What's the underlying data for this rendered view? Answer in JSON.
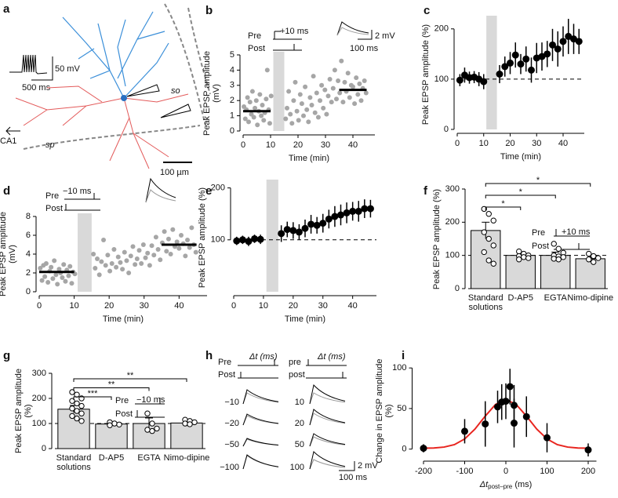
{
  "figure": {
    "a": {
      "panel": "a",
      "vscale": "50 mV",
      "hscale": "500 ms",
      "so": "so",
      "sp": "sp",
      "ca1": "CA1",
      "scale": "100 µm"
    },
    "h": {
      "panel": "h",
      "pre_left": "Pre",
      "post_left": "Post",
      "dt_left": "Δt (ms)",
      "left_rows": [
        "−10",
        "−20",
        "−50",
        "−100"
      ],
      "pre_right": "pre",
      "post_right": "post",
      "dt_right": "Δt (ms)",
      "right_rows": [
        "10",
        "20",
        "50",
        "100"
      ],
      "scale_mv": "2 mV",
      "scale_ms": "100 ms"
    }
  },
  "chart_data": [
    {
      "panel": "b",
      "type": "scatter",
      "xlabel": "Time (min)",
      "ylabel": "Peak EPSP amplitude (mV)",
      "xlim": [
        0,
        48
      ],
      "ylim": [
        0,
        5
      ],
      "xticks": [
        0,
        10,
        20,
        30,
        40
      ],
      "yticks": [
        0,
        1,
        2,
        3,
        4,
        5
      ],
      "shade": [
        11,
        15
      ],
      "color": "#a6a6a6",
      "x": [
        0.3,
        0.8,
        1.2,
        1.6,
        2.0,
        2.5,
        3.0,
        3.4,
        3.9,
        4.3,
        4.8,
        5.2,
        5.7,
        6.1,
        6.6,
        7.0,
        7.5,
        7.9,
        8.4,
        8.8,
        9.3,
        9.7,
        10.2,
        15.5,
        16,
        16.6,
        17.2,
        17.8,
        18.4,
        19,
        19.6,
        20.2,
        20.8,
        21.4,
        22,
        22.6,
        23.2,
        23.8,
        24.4,
        25,
        25.6,
        26.2,
        26.8,
        27.4,
        28,
        28.6,
        29.2,
        29.8,
        30.4,
        31,
        31.6,
        32.2,
        32.8,
        33.4,
        34,
        34.6,
        35.2,
        35.8,
        36.4,
        37,
        37.6,
        38.2,
        38.8,
        39.4,
        40,
        40.6,
        41.2,
        41.8,
        42.4,
        43,
        43.6,
        44.2,
        44.8
      ],
      "values": [
        1.6,
        0.8,
        1.4,
        2.2,
        0.6,
        1.9,
        1.1,
        2.6,
        0.9,
        1.5,
        2.0,
        0.4,
        1.3,
        2.4,
        1.0,
        1.7,
        0.7,
        1.2,
        2.1,
        4.0,
        1.4,
        0.5,
        2.3,
        0.8,
        1.5,
        2.6,
        1.1,
        0.5,
        2.0,
        3.2,
        1.3,
        0.7,
        2.4,
        1.8,
        1.0,
        2.9,
        1.4,
        0.6,
        2.2,
        1.7,
        3.6,
        1.2,
        2.5,
        0.9,
        2.0,
        3.0,
        1.5,
        2.7,
        1.1,
        2.3,
        3.4,
        1.9,
        2.8,
        4.0,
        2.1,
        3.3,
        2.5,
        4.6,
        1.9,
        3.2,
        2.6,
        3.8,
        2.2,
        3.0,
        2.9,
        1.8,
        3.5,
        2.4,
        3.1,
        2.0,
        2.8,
        3.3,
        2.5
      ],
      "means": [
        {
          "x": [
            0,
            10
          ],
          "value": 1.3
        },
        {
          "x": [
            35,
            45
          ],
          "value": 2.7
        }
      ],
      "annotations": [
        "Pre",
        "Post",
        "+10 ms",
        "2 mV",
        "100 ms"
      ]
    },
    {
      "panel": "c",
      "type": "errorbar",
      "xlabel": "Time (min)",
      "ylabel": "Peak EPSP amplitude (%)",
      "xlim": [
        0,
        48
      ],
      "ylim": [
        0,
        220
      ],
      "xticks": [
        0,
        10,
        20,
        30,
        40
      ],
      "yticks": [
        0,
        100,
        200
      ],
      "shade": [
        11,
        15
      ],
      "reference": 100,
      "color": "#000000",
      "x": [
        1,
        2.8,
        4.6,
        6.4,
        8.2,
        10,
        16,
        18,
        20,
        22,
        24,
        26,
        28,
        30,
        32,
        34,
        36,
        38,
        40,
        42,
        44,
        46
      ],
      "values": [
        98,
        108,
        103,
        104,
        100,
        95,
        110,
        125,
        132,
        148,
        130,
        140,
        118,
        142,
        145,
        150,
        168,
        160,
        175,
        185,
        180,
        175
      ],
      "errors": [
        12,
        15,
        12,
        12,
        14,
        15,
        18,
        20,
        22,
        25,
        20,
        25,
        25,
        30,
        28,
        26,
        32,
        35,
        30,
        35,
        30,
        25
      ]
    },
    {
      "panel": "d",
      "type": "scatter",
      "xlabel": "Time (min)",
      "ylabel": "Peak EPSP amplitude (mV)",
      "xlim": [
        0,
        48
      ],
      "ylim": [
        0,
        8
      ],
      "xticks": [
        0,
        10,
        20,
        30,
        40
      ],
      "yticks": [
        0,
        2,
        4,
        6,
        8
      ],
      "shade": [
        11,
        15
      ],
      "color": "#a6a6a6",
      "x": [
        0.3,
        0.8,
        1.2,
        1.6,
        2.0,
        2.5,
        3.0,
        3.4,
        3.9,
        4.3,
        4.8,
        5.2,
        5.7,
        6.1,
        6.6,
        7.0,
        7.5,
        7.9,
        8.4,
        8.8,
        9.3,
        9.7,
        10.2,
        15.5,
        16,
        16.6,
        17.2,
        17.8,
        18.4,
        19,
        19.6,
        20.2,
        20.8,
        21.4,
        22,
        22.6,
        23.2,
        23.8,
        24.4,
        25,
        25.6,
        26.2,
        26.8,
        27.4,
        28,
        28.6,
        29.2,
        29.8,
        30.4,
        31,
        31.6,
        32.2,
        32.8,
        33.4,
        34,
        34.6,
        35.2,
        35.8,
        36.4,
        37,
        37.6,
        38.2,
        38.8,
        39.4,
        40,
        40.6,
        41.2,
        41.8,
        42.4,
        43,
        43.6,
        44.2,
        44.8
      ],
      "values": [
        2.5,
        1.2,
        2.8,
        1.6,
        3.0,
        1.0,
        2.2,
        2.6,
        1.4,
        3.3,
        1.8,
        0.8,
        2.4,
        2.0,
        1.5,
        2.9,
        1.1,
        2.3,
        1.7,
        2.7,
        0.9,
        2.1,
        1.9,
        4.0,
        2.5,
        3.5,
        1.8,
        3.2,
        5.5,
        2.8,
        3.9,
        2.2,
        3.0,
        4.5,
        2.6,
        3.7,
        3.1,
        2.4,
        4.2,
        3.3,
        2.0,
        3.8,
        4.8,
        2.9,
        3.5,
        4.4,
        3.0,
        5.0,
        3.6,
        4.1,
        2.8,
        4.9,
        3.9,
        5.8,
        4.5,
        3.4,
        5.2,
        6.4,
        4.3,
        5.6,
        4.0,
        6.6,
        4.8,
        5.3,
        4.6,
        6.0,
        5.1,
        3.8,
        5.5,
        4.7,
        6.8,
        5.0,
        4.2
      ],
      "means": [
        {
          "x": [
            0,
            10
          ],
          "value": 2.1
        },
        {
          "x": [
            35,
            45
          ],
          "value": 5.0
        }
      ],
      "annotations": [
        "Pre",
        "Post",
        "−10 ms"
      ]
    },
    {
      "panel": "e",
      "type": "errorbar",
      "xlabel": "Time (min)",
      "ylabel": "Peak EPSP amplitude (%)",
      "xlim": [
        0,
        48
      ],
      "ylim": [
        0,
        210
      ],
      "xticks": [
        0,
        10,
        20,
        30,
        40
      ],
      "yticks": [
        100,
        200
      ],
      "shade": [
        11,
        15
      ],
      "reference": 100,
      "color": "#000000",
      "x": [
        1,
        3,
        5,
        7,
        9,
        16,
        18,
        20,
        22,
        24,
        26,
        28,
        30,
        32,
        34,
        36,
        38,
        40,
        42,
        44,
        46
      ],
      "values": [
        98,
        100,
        97,
        102,
        101,
        112,
        120,
        118,
        115,
        122,
        130,
        128,
        132,
        140,
        145,
        148,
        152,
        155,
        155,
        160,
        160
      ],
      "errors": [
        8,
        8,
        9,
        8,
        9,
        16,
        15,
        16,
        15,
        17,
        18,
        16,
        18,
        18,
        20,
        20,
        20,
        18,
        20,
        18,
        17
      ]
    },
    {
      "panel": "f",
      "type": "bar",
      "ylabel": "Peak EPSP amplitude (%)",
      "categories": [
        "Standard solutions",
        "D-AP5",
        "EGTA",
        "Nimo-dipine"
      ],
      "values": [
        175,
        100,
        100,
        90
      ],
      "errors": [
        25,
        8,
        10,
        10
      ],
      "color": "#d9d9d9",
      "points": [
        [
          240,
          225,
          205,
          170,
          150,
          130,
          110,
          85,
          75
        ],
        [
          112,
          105,
          100,
          98,
          95,
          92,
          88
        ],
        [
          135,
          120,
          108,
          100,
          97,
          95,
          90,
          88
        ],
        [
          105,
          98,
          92,
          88,
          80
        ]
      ],
      "ylim": [
        0,
        300
      ],
      "yticks": [
        0,
        100,
        200,
        300
      ],
      "reference": 100,
      "significance": [
        {
          "pair": [
            "Standard solutions",
            "D-AP5"
          ],
          "label": "*"
        },
        {
          "pair": [
            "Standard solutions",
            "EGTA"
          ],
          "label": "*"
        },
        {
          "pair": [
            "Standard solutions",
            "Nimo-dipine"
          ],
          "label": "*"
        }
      ],
      "annotations": [
        "Pre",
        "Post",
        "+10 ms"
      ]
    },
    {
      "panel": "g",
      "type": "bar",
      "ylabel": "Peak EPSP amplitude (%)",
      "categories": [
        "Standard solutions",
        "D-AP5",
        "EGTA",
        "Nimo-dipine"
      ],
      "values": [
        157,
        98,
        100,
        102
      ],
      "errors": [
        15,
        5,
        22,
        12
      ],
      "color": "#d9d9d9",
      "points": [
        [
          225,
          215,
          200,
          190,
          180,
          170,
          160,
          150,
          140,
          130,
          120,
          110
        ],
        [
          105,
          100,
          96,
          93
        ],
        [
          140,
          100,
          80,
          75,
          70
        ],
        [
          115,
          110,
          105,
          100,
          97
        ]
      ],
      "ylim": [
        0,
        300
      ],
      "yticks": [
        0,
        100,
        200,
        300
      ],
      "reference": 100,
      "significance": [
        {
          "pair": [
            "Standard solutions",
            "D-AP5"
          ],
          "label": "***"
        },
        {
          "pair": [
            "Standard solutions",
            "EGTA"
          ],
          "label": "**"
        },
        {
          "pair": [
            "Standard solutions",
            "Nimo-dipine"
          ],
          "label": "**"
        }
      ],
      "annotations": [
        "Pre",
        "Post",
        "−10 ms"
      ]
    },
    {
      "panel": "i",
      "type": "errorbar",
      "xlabel": "Δt",
      "xlabel_sub": "post–pre",
      "xlabel_unit": " (ms)",
      "ylabel": "Change in EPSP amplitude (%)",
      "xlim": [
        -220,
        220
      ],
      "ylim": [
        -10,
        105
      ],
      "xticks": [
        -200,
        -100,
        0,
        100,
        200
      ],
      "yticks": [
        0,
        50,
        100
      ],
      "color": "#000000",
      "x": [
        -200,
        -100,
        -50,
        -20,
        -10,
        0,
        10,
        20,
        20,
        50,
        100,
        200
      ],
      "values": [
        1,
        22,
        31,
        52,
        58,
        59,
        77,
        32,
        54,
        40,
        14,
        -1
      ],
      "errors": [
        5,
        15,
        28,
        20,
        22,
        22,
        22,
        30,
        25,
        25,
        18,
        8
      ],
      "fit": {
        "color": "#e8251f",
        "x": [
          -200,
          -175,
          -150,
          -125,
          -100,
          -75,
          -50,
          -25,
          0,
          25,
          50,
          75,
          100,
          125,
          150,
          175,
          200
        ],
        "values": [
          1.1,
          1.4,
          2.5,
          5.5,
          12.5,
          24.7,
          40.7,
          55.1,
          61,
          55.1,
          40.7,
          24.7,
          12.5,
          5.5,
          2.5,
          1.4,
          1.1
        ]
      }
    }
  ]
}
